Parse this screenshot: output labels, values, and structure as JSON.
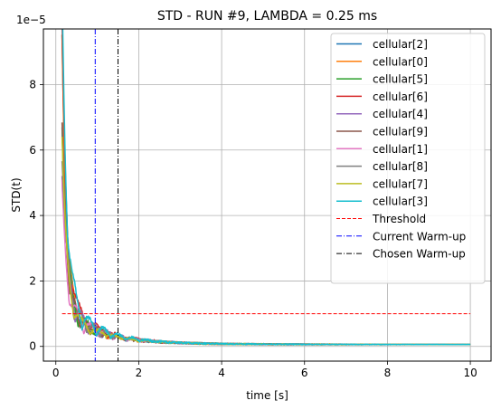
{
  "chart_data": {
    "type": "line",
    "title": "STD - RUN #9, LAMBDA = 0.25 ms",
    "xlabel": "time [s]",
    "ylabel": "STD(t)",
    "y_exponent_label": "1e−5",
    "xlim": [
      -0.3,
      10.5
    ],
    "ylim": [
      -0.45,
      9.7
    ],
    "x_ticks": [
      0,
      2,
      4,
      6,
      8,
      10
    ],
    "x_tick_labels": [
      "0",
      "2",
      "4",
      "6",
      "8",
      "10"
    ],
    "y_ticks": [
      0,
      2,
      4,
      6,
      8
    ],
    "y_tick_labels": [
      "0",
      "2",
      "4",
      "6",
      "8"
    ],
    "grid": true,
    "legend_position": "top-right",
    "series": [
      {
        "name": "cellular[2]",
        "color": "#1f77b4",
        "start": 8.1,
        "osc": 0.9,
        "freq": 11,
        "phase": 0.3,
        "seed": 2
      },
      {
        "name": "cellular[0]",
        "color": "#ff7f0e",
        "start": 8.4,
        "osc": 0.8,
        "freq": 9,
        "phase": 1.1,
        "seed": 0
      },
      {
        "name": "cellular[5]",
        "color": "#2ca02c",
        "start": 6.0,
        "osc": 1.0,
        "freq": 8,
        "phase": 2.0,
        "seed": 5
      },
      {
        "name": "cellular[6]",
        "color": "#d62728",
        "start": 8.2,
        "osc": 1.3,
        "freq": 7,
        "phase": 0.8,
        "seed": 6
      },
      {
        "name": "cellular[4]",
        "color": "#9467bd",
        "start": 4.5,
        "osc": 1.2,
        "freq": 10,
        "phase": 1.6,
        "seed": 4
      },
      {
        "name": "cellular[9]",
        "color": "#8c564b",
        "start": 5.5,
        "osc": 0.9,
        "freq": 12,
        "phase": 2.4,
        "seed": 9
      },
      {
        "name": "cellular[1]",
        "color": "#e377c2",
        "start": 3.5,
        "osc": 1.0,
        "freq": 9,
        "phase": 0.2,
        "seed": 1
      },
      {
        "name": "cellular[8]",
        "color": "#7f7f7f",
        "start": 4.8,
        "osc": 1.1,
        "freq": 10,
        "phase": 1.9,
        "seed": 8
      },
      {
        "name": "cellular[7]",
        "color": "#bcbd22",
        "start": 5.2,
        "osc": 0.8,
        "freq": 8,
        "phase": 2.8,
        "seed": 7
      },
      {
        "name": "cellular[3]",
        "color": "#17becf",
        "start": 9.2,
        "osc": 1.4,
        "freq": 9,
        "phase": 0.6,
        "seed": 3
      }
    ],
    "threshold": {
      "name": "Threshold",
      "color": "#ff0000",
      "y": 1.0,
      "x_start": 0.15,
      "x_end": 10.0
    },
    "current_warmup": {
      "name": "Current Warm-up",
      "color": "#0000ff",
      "x": 0.95
    },
    "chosen_warmup": {
      "name": "Chosen Warm-up",
      "color": "#000000",
      "x": 1.5
    }
  }
}
